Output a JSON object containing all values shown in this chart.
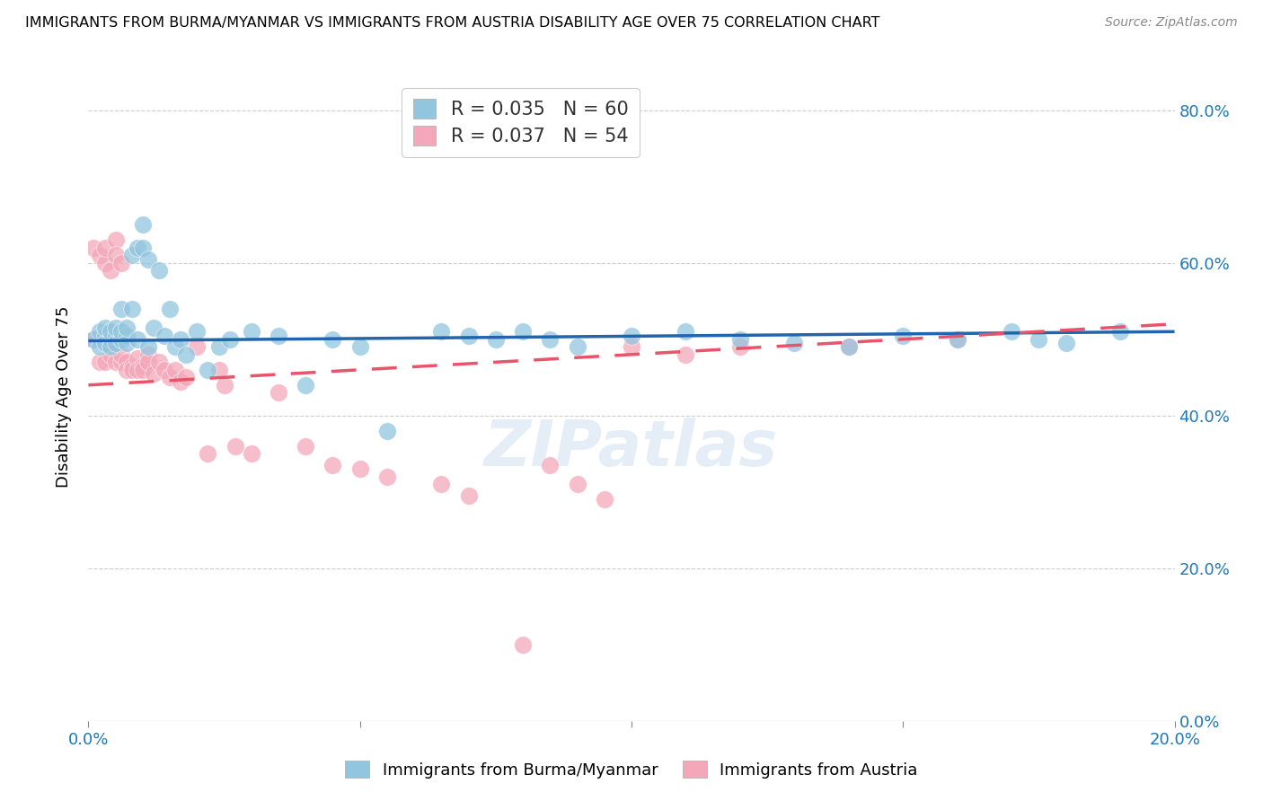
{
  "title": "IMMIGRANTS FROM BURMA/MYANMAR VS IMMIGRANTS FROM AUSTRIA DISABILITY AGE OVER 75 CORRELATION CHART",
  "source": "Source: ZipAtlas.com",
  "ylabel": "Disability Age Over 75",
  "xlim": [
    0.0,
    0.2
  ],
  "ylim": [
    0.0,
    0.85
  ],
  "legend1_R": "R = 0.035",
  "legend1_N": "N = 60",
  "legend2_R": "R = 0.037",
  "legend2_N": "N = 54",
  "blue_color": "#92c5de",
  "pink_color": "#f4a7b9",
  "trend_blue": "#2166ac",
  "trend_pink": "#e8546a",
  "watermark": "ZIPatlas",
  "blue_scatter_x": [
    0.001,
    0.002,
    0.002,
    0.003,
    0.003,
    0.003,
    0.004,
    0.004,
    0.004,
    0.005,
    0.005,
    0.005,
    0.006,
    0.006,
    0.006,
    0.007,
    0.007,
    0.007,
    0.008,
    0.008,
    0.009,
    0.009,
    0.01,
    0.01,
    0.011,
    0.011,
    0.012,
    0.013,
    0.014,
    0.015,
    0.016,
    0.017,
    0.018,
    0.02,
    0.022,
    0.024,
    0.026,
    0.03,
    0.035,
    0.04,
    0.045,
    0.05,
    0.055,
    0.065,
    0.07,
    0.075,
    0.08,
    0.085,
    0.09,
    0.1,
    0.11,
    0.12,
    0.13,
    0.14,
    0.15,
    0.16,
    0.17,
    0.175,
    0.18,
    0.19
  ],
  "blue_scatter_y": [
    0.5,
    0.51,
    0.49,
    0.505,
    0.495,
    0.515,
    0.5,
    0.51,
    0.49,
    0.505,
    0.495,
    0.515,
    0.5,
    0.51,
    0.54,
    0.505,
    0.495,
    0.515,
    0.61,
    0.54,
    0.62,
    0.5,
    0.62,
    0.65,
    0.605,
    0.49,
    0.515,
    0.59,
    0.505,
    0.54,
    0.49,
    0.5,
    0.48,
    0.51,
    0.46,
    0.49,
    0.5,
    0.51,
    0.505,
    0.44,
    0.5,
    0.49,
    0.38,
    0.51,
    0.505,
    0.5,
    0.51,
    0.5,
    0.49,
    0.505,
    0.51,
    0.5,
    0.495,
    0.49,
    0.505,
    0.5,
    0.51,
    0.5,
    0.495,
    0.51
  ],
  "pink_scatter_x": [
    0.001,
    0.001,
    0.002,
    0.002,
    0.003,
    0.003,
    0.003,
    0.004,
    0.004,
    0.005,
    0.005,
    0.005,
    0.006,
    0.006,
    0.006,
    0.007,
    0.007,
    0.008,
    0.008,
    0.009,
    0.009,
    0.01,
    0.01,
    0.011,
    0.011,
    0.012,
    0.013,
    0.014,
    0.015,
    0.016,
    0.017,
    0.018,
    0.02,
    0.022,
    0.024,
    0.025,
    0.027,
    0.03,
    0.035,
    0.04,
    0.045,
    0.05,
    0.055,
    0.065,
    0.07,
    0.08,
    0.085,
    0.09,
    0.095,
    0.1,
    0.11,
    0.12,
    0.14,
    0.16
  ],
  "pink_scatter_y": [
    0.5,
    0.62,
    0.47,
    0.61,
    0.6,
    0.62,
    0.47,
    0.59,
    0.48,
    0.63,
    0.61,
    0.47,
    0.6,
    0.47,
    0.48,
    0.47,
    0.46,
    0.465,
    0.46,
    0.475,
    0.46,
    0.465,
    0.46,
    0.48,
    0.47,
    0.455,
    0.47,
    0.46,
    0.45,
    0.46,
    0.445,
    0.45,
    0.49,
    0.35,
    0.46,
    0.44,
    0.36,
    0.35,
    0.43,
    0.36,
    0.335,
    0.33,
    0.32,
    0.31,
    0.295,
    0.1,
    0.335,
    0.31,
    0.29,
    0.49,
    0.48,
    0.49,
    0.49,
    0.5
  ],
  "blue_trend_x": [
    0.0,
    0.2
  ],
  "blue_trend_y": [
    0.498,
    0.51
  ],
  "pink_trend_x": [
    0.0,
    0.2
  ],
  "pink_trend_y": [
    0.44,
    0.52
  ],
  "x_tick_vals": [
    0.0,
    0.05,
    0.1,
    0.15,
    0.2
  ],
  "x_tick_labels": [
    "0.0%",
    "",
    "",
    "",
    "20.0%"
  ],
  "y_tick_vals": [
    0.0,
    0.2,
    0.4,
    0.6,
    0.8
  ],
  "y_tick_labels": [
    "0.0%",
    "20.0%",
    "40.0%",
    "60.0%",
    "80.0%"
  ]
}
